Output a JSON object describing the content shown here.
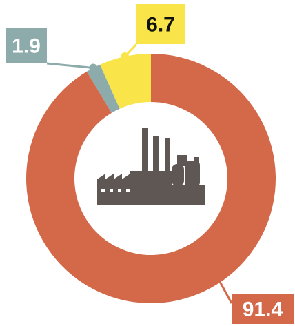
{
  "chart_data": {
    "type": "donut",
    "values": [
      91.4,
      1.9,
      6.7
    ],
    "colors": [
      "#d4694a",
      "#8eabac",
      "#f9e449"
    ],
    "label_colors": [
      "#ffffff",
      "#ffffff",
      "#111111"
    ]
  }
}
